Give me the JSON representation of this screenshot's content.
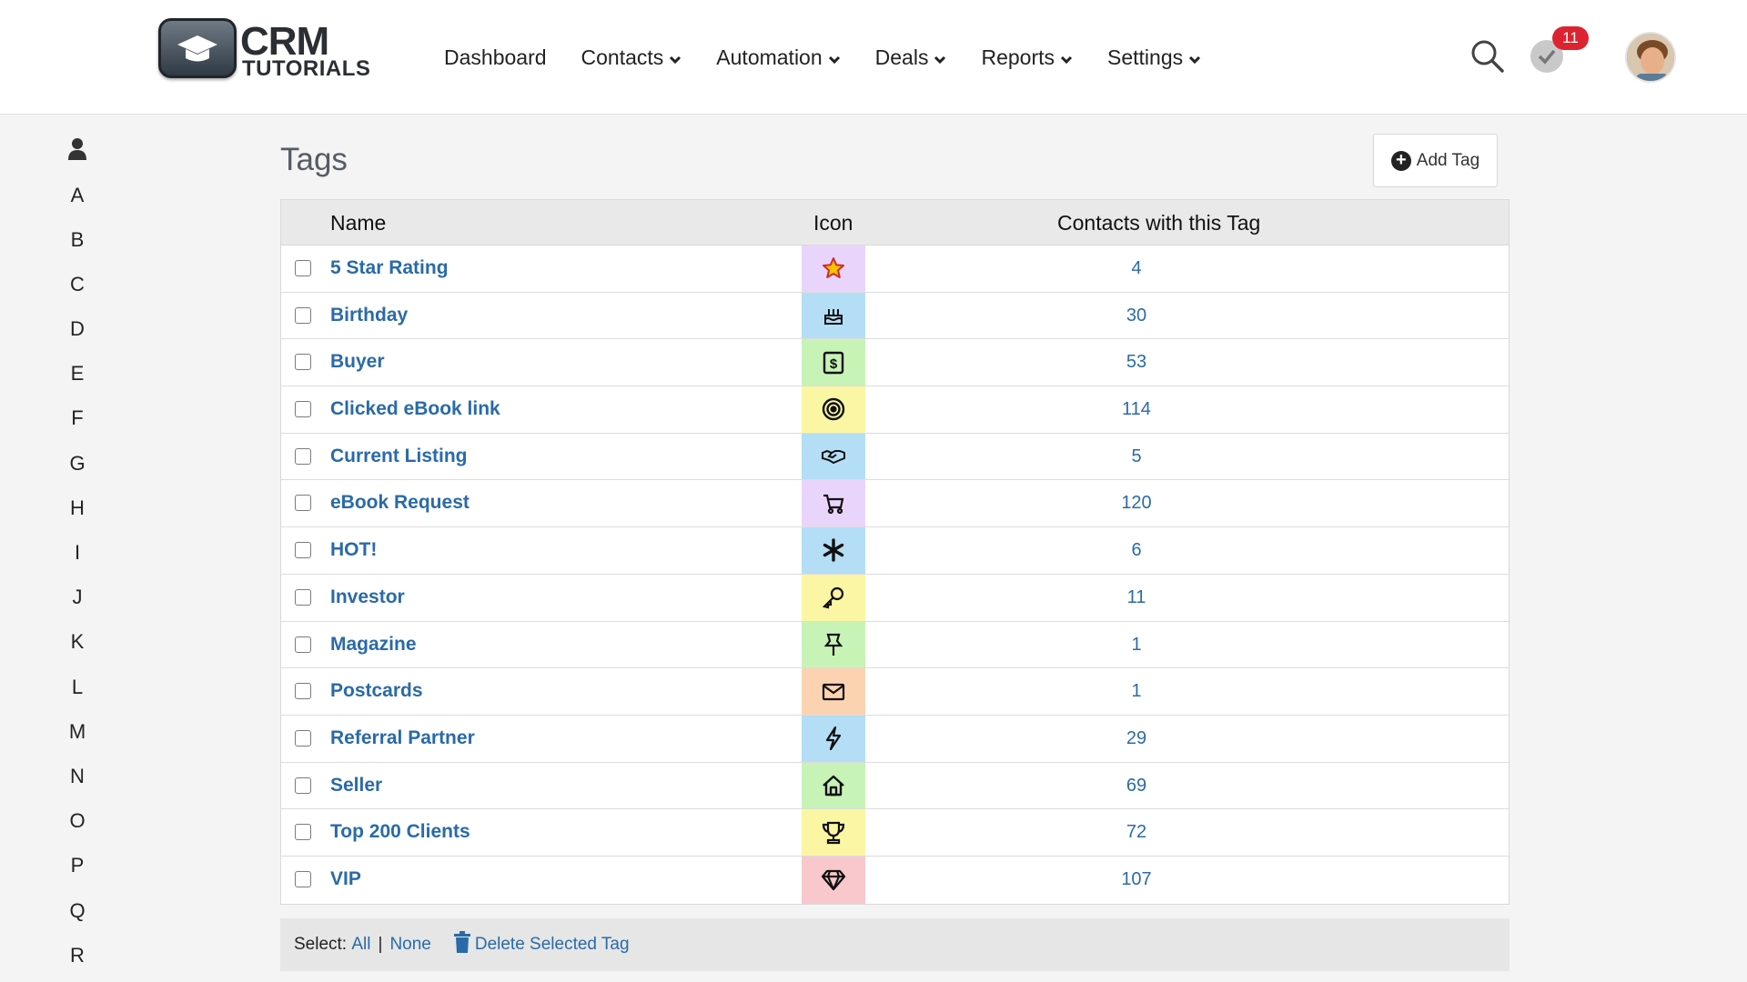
{
  "brand": {
    "line1": "CRM",
    "line2": "TUTORIALS"
  },
  "nav": [
    {
      "label": "Dashboard",
      "dropdown": false
    },
    {
      "label": "Contacts",
      "dropdown": true
    },
    {
      "label": "Automation",
      "dropdown": true
    },
    {
      "label": "Deals",
      "dropdown": true
    },
    {
      "label": "Reports",
      "dropdown": true
    },
    {
      "label": "Settings",
      "dropdown": true
    }
  ],
  "notifications": {
    "count": "11"
  },
  "alphabet": [
    "A",
    "B",
    "C",
    "D",
    "E",
    "F",
    "G",
    "H",
    "I",
    "J",
    "K",
    "L",
    "M",
    "N",
    "O",
    "P",
    "Q",
    "R"
  ],
  "page": {
    "title": "Tags",
    "add_tag_label": "Add Tag"
  },
  "table": {
    "headers": {
      "name": "Name",
      "icon": "Icon",
      "contacts": "Contacts with this Tag"
    },
    "rows": [
      {
        "name": "5 Star Rating",
        "icon": "star-icon",
        "color": "#e9d5fb",
        "count": "4"
      },
      {
        "name": "Birthday",
        "icon": "cake-icon",
        "color": "#b4def5",
        "count": "30"
      },
      {
        "name": "Buyer",
        "icon": "dollar-icon",
        "color": "#c8f3b6",
        "count": "53"
      },
      {
        "name": "Clicked eBook link",
        "icon": "target-icon",
        "color": "#fbf6a4",
        "count": "114"
      },
      {
        "name": "Current Listing",
        "icon": "handshake-icon",
        "color": "#b4def5",
        "count": "5"
      },
      {
        "name": "eBook Request",
        "icon": "cart-icon",
        "color": "#e9d5fb",
        "count": "120"
      },
      {
        "name": "HOT!",
        "icon": "asterisk-icon",
        "color": "#b4def5",
        "count": "6"
      },
      {
        "name": "Investor",
        "icon": "key-icon",
        "color": "#fbf6a4",
        "count": "11"
      },
      {
        "name": "Magazine",
        "icon": "pin-icon",
        "color": "#c8f3b6",
        "count": "1"
      },
      {
        "name": "Postcards",
        "icon": "envelope-icon",
        "color": "#fbd3b0",
        "count": "1"
      },
      {
        "name": "Referral Partner",
        "icon": "bolt-icon",
        "color": "#b4def5",
        "count": "29"
      },
      {
        "name": "Seller",
        "icon": "house-icon",
        "color": "#c8f3b6",
        "count": "69"
      },
      {
        "name": "Top 200 Clients",
        "icon": "trophy-icon",
        "color": "#fbf6a4",
        "count": "72"
      },
      {
        "name": "VIP",
        "icon": "diamond-icon",
        "color": "#f9c8cc",
        "count": "107"
      }
    ]
  },
  "footer": {
    "select_label": "Select:",
    "all": "All",
    "divider": "|",
    "none": "None",
    "delete_label": "Delete Selected Tag"
  }
}
